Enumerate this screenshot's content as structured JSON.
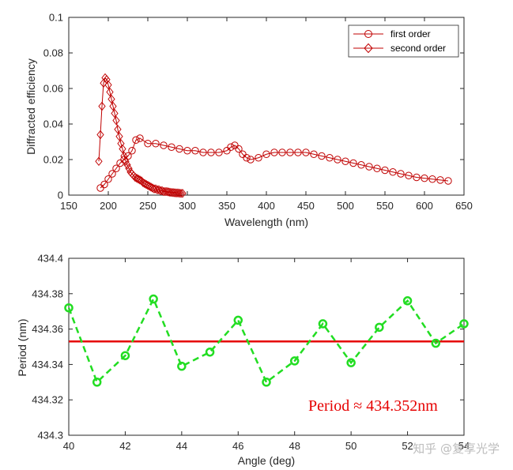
{
  "chart_data": [
    {
      "type": "line",
      "xlabel": "Wavelength (nm)",
      "ylabel": "Diffracted efficiency",
      "xlim": [
        150,
        650
      ],
      "ylim": [
        0,
        0.1
      ],
      "xticks": [
        "150",
        "200",
        "250",
        "300",
        "350",
        "400",
        "450",
        "500",
        "550",
        "600",
        "650"
      ],
      "yticks": [
        "0",
        "0.02",
        "0.04",
        "0.06",
        "0.08",
        "0.1"
      ],
      "grid": false,
      "legend_position": "top-right",
      "colors": {
        "series": "#c00000",
        "axis": "#262626"
      },
      "series": [
        {
          "name": "first order",
          "marker": "circle",
          "x": [
            190,
            195,
            200,
            205,
            210,
            215,
            220,
            225,
            230,
            235,
            240,
            250,
            260,
            270,
            280,
            290,
            300,
            310,
            320,
            330,
            340,
            350,
            355,
            360,
            365,
            370,
            375,
            380,
            390,
            400,
            410,
            420,
            430,
            440,
            450,
            460,
            470,
            480,
            490,
            500,
            510,
            520,
            530,
            540,
            550,
            560,
            570,
            580,
            590,
            600,
            610,
            620,
            630
          ],
          "values": [
            0.004,
            0.006,
            0.009,
            0.012,
            0.015,
            0.018,
            0.02,
            0.022,
            0.025,
            0.031,
            0.032,
            0.029,
            0.029,
            0.028,
            0.027,
            0.026,
            0.025,
            0.025,
            0.024,
            0.024,
            0.024,
            0.025,
            0.027,
            0.028,
            0.026,
            0.023,
            0.021,
            0.02,
            0.021,
            0.023,
            0.024,
            0.024,
            0.024,
            0.024,
            0.024,
            0.023,
            0.022,
            0.021,
            0.02,
            0.019,
            0.018,
            0.017,
            0.016,
            0.015,
            0.014,
            0.013,
            0.012,
            0.011,
            0.01,
            0.0095,
            0.009,
            0.0085,
            0.008
          ]
        },
        {
          "name": "second order",
          "marker": "diamond",
          "x": [
            188,
            190,
            192,
            194,
            196,
            198,
            200,
            202,
            204,
            206,
            208,
            210,
            212,
            214,
            216,
            218,
            220,
            222,
            224,
            226,
            228,
            230,
            232,
            234,
            236,
            238,
            240,
            242,
            244,
            246,
            248,
            250,
            252,
            254,
            256,
            258,
            260,
            262,
            264,
            266,
            268,
            270,
            272,
            274,
            276,
            278,
            280,
            282,
            284,
            286,
            288,
            290,
            292,
            294
          ],
          "values": [
            0.019,
            0.034,
            0.05,
            0.063,
            0.066,
            0.065,
            0.062,
            0.058,
            0.054,
            0.05,
            0.046,
            0.042,
            0.037,
            0.033,
            0.029,
            0.026,
            0.022,
            0.019,
            0.017,
            0.015,
            0.013,
            0.012,
            0.011,
            0.01,
            0.0095,
            0.009,
            0.0085,
            0.008,
            0.007,
            0.0065,
            0.006,
            0.0055,
            0.005,
            0.0045,
            0.004,
            0.0035,
            0.0035,
            0.003,
            0.003,
            0.0025,
            0.0025,
            0.002,
            0.002,
            0.002,
            0.0018,
            0.0016,
            0.0015,
            0.0014,
            0.0013,
            0.0012,
            0.0012,
            0.0011,
            0.001,
            0.001
          ]
        }
      ]
    },
    {
      "type": "line",
      "xlabel": "Angle (deg)",
      "ylabel": "Period (nm)",
      "xlim": [
        40,
        54
      ],
      "ylim": [
        434.3,
        434.4
      ],
      "xticks": [
        "40",
        "42",
        "44",
        "46",
        "48",
        "50",
        "52",
        "54"
      ],
      "yticks": [
        "434.3",
        "434.32",
        "434.34",
        "434.36",
        "434.38",
        "434.4"
      ],
      "grid": false,
      "colors": {
        "data": "#22dd22",
        "fit": "#e60000",
        "annotation": "#e60000",
        "axis": "#262626"
      },
      "series": [
        {
          "marker": "circle",
          "line_style": "dashed",
          "x": [
            40,
            41,
            42,
            43,
            44,
            45,
            46,
            47,
            48,
            49,
            50,
            51,
            52,
            53,
            54
          ],
          "values": [
            434.372,
            434.33,
            434.345,
            434.377,
            434.339,
            434.347,
            434.365,
            434.33,
            434.342,
            434.363,
            434.341,
            434.361,
            434.376,
            434.352,
            434.363
          ]
        }
      ],
      "fit_line": {
        "value": 434.353
      },
      "annotation": "Period ≈ 434.352nm"
    }
  ],
  "watermark": "知乎 @复享光学"
}
